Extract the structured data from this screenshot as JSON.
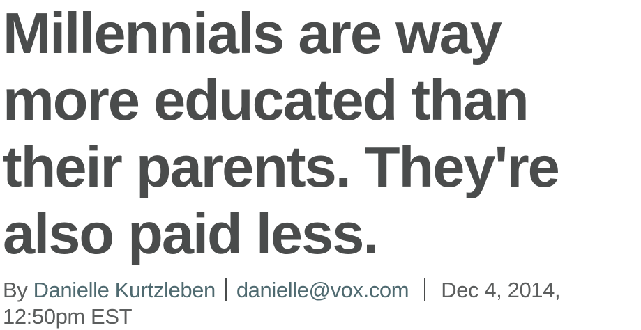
{
  "article": {
    "headline": "Millennials are way more educated than their parents. They're also paid less.",
    "byline": {
      "prefix": "By",
      "author": "Danielle Kurtzleben",
      "email": "danielle@vox.com",
      "date": "Dec 4, 2014,",
      "time": "12:50pm EST"
    }
  },
  "colors": {
    "headline": "#4a4c4c",
    "link": "#4f6a70",
    "meta": "#5c5e5e"
  }
}
